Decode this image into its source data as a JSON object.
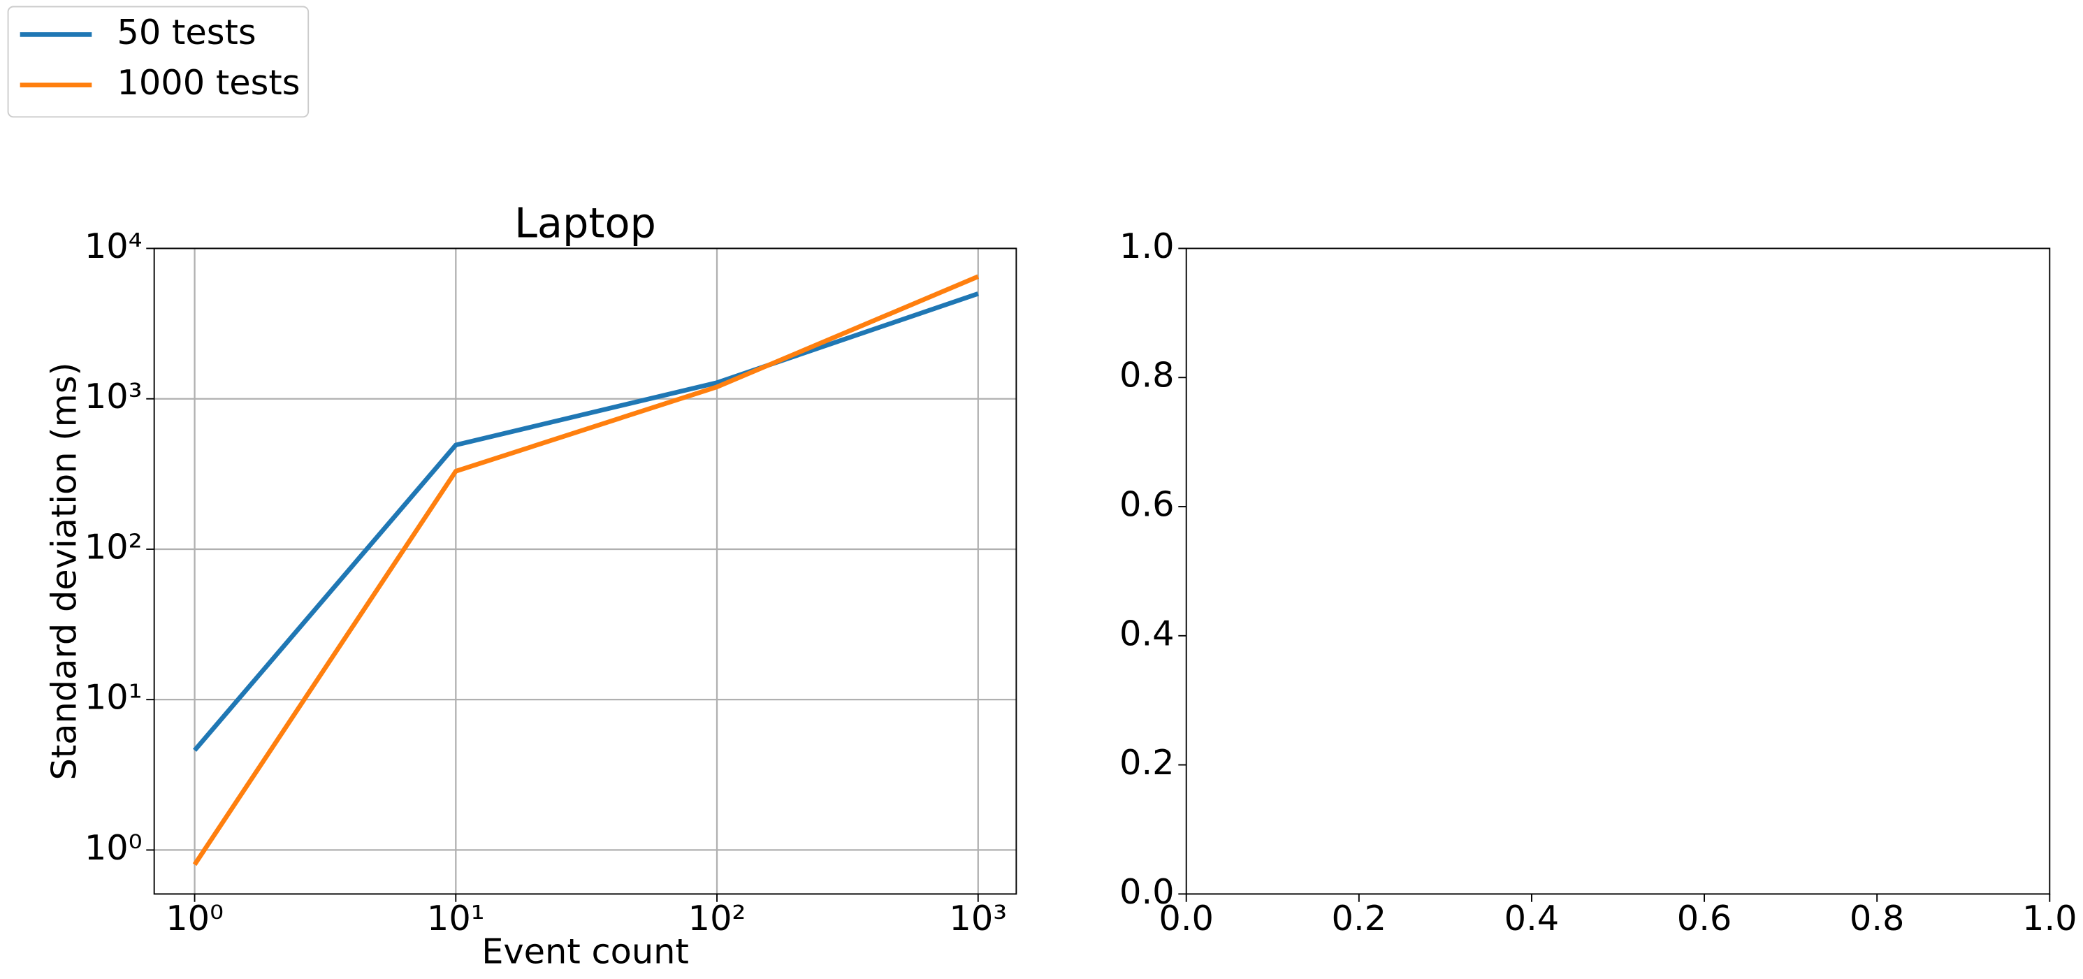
{
  "chart_data": [
    {
      "type": "line",
      "title": "Laptop",
      "xlabel": "Event count",
      "ylabel": "Standard deviation (ms)",
      "x": [
        1,
        10,
        100,
        1000
      ],
      "series": [
        {
          "name": "50 tests",
          "color": "#1f77b4",
          "values": [
            4.6,
            493,
            1280,
            5000
          ]
        },
        {
          "name": "1000 tests",
          "color": "#ff7f0e",
          "values": [
            0.8,
            330,
            1200,
            6500
          ]
        }
      ],
      "xscale": "log",
      "yscale": "log",
      "xlim": [
        0.7,
        1400
      ],
      "ylim": [
        0.51,
        10000
      ],
      "xticks": [
        {
          "value": 1,
          "label": "10⁰"
        },
        {
          "value": 10,
          "label": "10¹"
        },
        {
          "value": 100,
          "label": "10²"
        },
        {
          "value": 1000,
          "label": "10³"
        }
      ],
      "yticks": [
        {
          "value": 1,
          "label": "10⁰"
        },
        {
          "value": 10,
          "label": "10¹"
        },
        {
          "value": 100,
          "label": "10²"
        },
        {
          "value": 1000,
          "label": "10³"
        },
        {
          "value": 10000,
          "label": "10⁴"
        }
      ],
      "grid": true,
      "legend": "upper left"
    },
    {
      "type": "line",
      "xlim": [
        0,
        1
      ],
      "ylim": [
        0,
        1
      ],
      "xticks": [
        {
          "value": 0,
          "label": "0.0"
        },
        {
          "value": 0.2,
          "label": "0.2"
        },
        {
          "value": 0.4,
          "label": "0.4"
        },
        {
          "value": 0.6,
          "label": "0.6"
        },
        {
          "value": 0.8,
          "label": "0.8"
        },
        {
          "value": 1,
          "label": "1.0"
        }
      ],
      "yticks": [
        {
          "value": 0,
          "label": "0.0"
        },
        {
          "value": 0.2,
          "label": "0.2"
        },
        {
          "value": 0.4,
          "label": "0.4"
        },
        {
          "value": 0.6,
          "label": "0.6"
        },
        {
          "value": 0.8,
          "label": "0.8"
        },
        {
          "value": 1,
          "label": "1.0"
        }
      ],
      "grid": false
    }
  ]
}
